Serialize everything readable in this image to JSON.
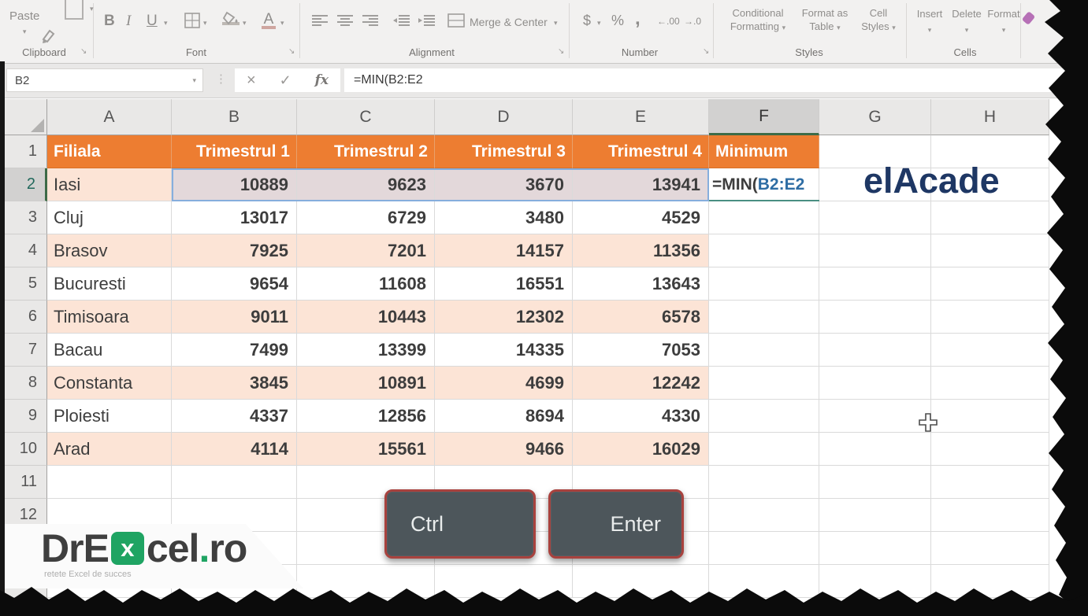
{
  "ribbon": {
    "paste": {
      "label": "Paste"
    },
    "groups": [
      {
        "label": "Clipboard"
      },
      {
        "label": "Font"
      },
      {
        "label": "Alignment"
      },
      {
        "label": "Number"
      },
      {
        "label": "Styles"
      },
      {
        "label": "Cells"
      }
    ],
    "font": {
      "bold": "B",
      "italic": "I",
      "underline": "U"
    },
    "alignment": {
      "merge_center": "Merge & Center"
    },
    "number": {
      "currency": "$",
      "percent": "%",
      "comma": ","
    },
    "styles_buttons": [
      {
        "line1": "Conditional",
        "line2": "Formatting"
      },
      {
        "line1": "Format as",
        "line2": "Table"
      },
      {
        "line1": "Cell",
        "line2": "Styles"
      }
    ],
    "cells_buttons": [
      "Insert",
      "Delete",
      "Format"
    ]
  },
  "formula_bar": {
    "name_box": "B2",
    "fx": "fx",
    "formula": "=MIN(B2:E2"
  },
  "sheet": {
    "col_letters": [
      "A",
      "B",
      "C",
      "D",
      "E",
      "F",
      "G",
      "H"
    ],
    "active_column": "F",
    "active_row": 2,
    "row_numbers_visible": [
      1,
      2,
      3,
      4,
      5,
      6,
      7,
      8,
      9,
      10,
      11,
      12
    ],
    "header_row": [
      "Filiala",
      "Trimestrul 1",
      "Trimestrul 2",
      "Trimestrul 3",
      "Trimestrul 4",
      "Minimum"
    ],
    "data_rows": [
      {
        "row": 2,
        "branch": "Iasi",
        "values": [
          10889,
          9623,
          3670,
          13941
        ],
        "minimum_formula": {
          "prefix": "=MIN(",
          "range": "B2:E2"
        }
      },
      {
        "row": 3,
        "branch": "Cluj",
        "values": [
          13017,
          6729,
          3480,
          4529
        ]
      },
      {
        "row": 4,
        "branch": "Brasov",
        "values": [
          7925,
          7201,
          14157,
          11356
        ]
      },
      {
        "row": 5,
        "branch": "Bucuresti",
        "values": [
          9654,
          11608,
          16551,
          13643
        ]
      },
      {
        "row": 6,
        "branch": "Timisoara",
        "values": [
          9011,
          10443,
          12302,
          6578
        ]
      },
      {
        "row": 7,
        "branch": "Bacau",
        "values": [
          7499,
          13399,
          14335,
          7053
        ]
      },
      {
        "row": 8,
        "branch": "Constanta",
        "values": [
          3845,
          10891,
          4699,
          12242
        ]
      },
      {
        "row": 9,
        "branch": "Ploiesti",
        "values": [
          4337,
          12856,
          8694,
          4330
        ]
      },
      {
        "row": 10,
        "branch": "Arad",
        "values": [
          4114,
          15561,
          9466,
          16029
        ]
      }
    ],
    "selection": {
      "active_cell": "B2",
      "highlighted_range": "B2:E2"
    }
  },
  "overlay": {
    "keys": [
      "Ctrl",
      "Enter"
    ],
    "watermark": "elAcade"
  },
  "logo": {
    "prefix": "DrE",
    "x_badge": "x",
    "middle": "cel",
    "dot": ".",
    "suffix": "ro",
    "tagline": "retete Excel de succes"
  },
  "colors": {
    "header_orange": "#ED7D31",
    "band_peach": "#FCE4D6",
    "selection_fill": "#E3D8DA",
    "range_border_blue": "#86AEDD",
    "formula_range_blue": "#2E6DA4",
    "watermark_blue": "#1E3764",
    "key_fill": "#4D565B",
    "key_border": "#A8423E",
    "logo_green": "#1FA463",
    "accent_green": "#3D6B47"
  }
}
